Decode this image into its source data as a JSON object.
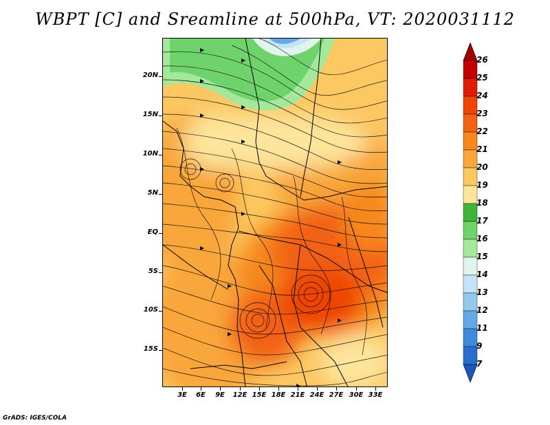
{
  "title": "WBPT [C] and Sreamline at 500hPa, VT: 2020031112",
  "footer": "GrADS: IGES/COLA",
  "map": {
    "lat_labels": [
      "20N",
      "15N",
      "10N",
      "5N",
      "EQ",
      "5S",
      "10S",
      "15S"
    ],
    "lon_labels": [
      "3E",
      "6E",
      "9E",
      "12E",
      "15E",
      "18E",
      "21E",
      "24E",
      "27E",
      "30E",
      "33E"
    ]
  },
  "colorbar": {
    "labels": [
      "26",
      "25",
      "24",
      "23",
      "22",
      "21",
      "20",
      "19",
      "18",
      "17",
      "16",
      "15",
      "14",
      "13",
      "12",
      "11",
      "9",
      "7"
    ],
    "colors": [
      "#c00000",
      "#dd1c00",
      "#ee4400",
      "#f26212",
      "#f6881c",
      "#f9a63a",
      "#fcc862",
      "#fde59c",
      "#3db53d",
      "#6fd36b",
      "#a4e89c",
      "#dff5ee",
      "#c4e3f7",
      "#95c8ef",
      "#64a9e6",
      "#3f8ad9",
      "#2a6ecd",
      "#1b55c0"
    ]
  }
}
